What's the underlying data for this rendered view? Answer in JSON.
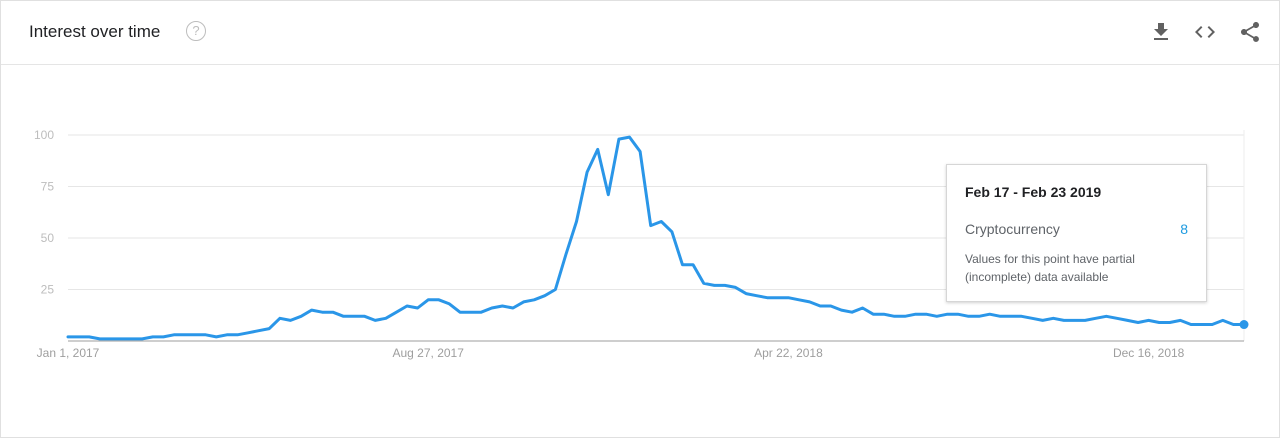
{
  "header": {
    "title": "Interest over time",
    "help_glyph": "?",
    "tools": [
      {
        "name": "download",
        "icon": "download-icon"
      },
      {
        "name": "embed",
        "icon": "code-icon"
      },
      {
        "name": "share",
        "icon": "share-icon"
      }
    ]
  },
  "tooltip": {
    "date": "Feb 17 - Feb 23 2019",
    "series": "Cryptocurrency",
    "value": "8",
    "note": "Values for this point have partial (incomplete) data available"
  },
  "colors": {
    "line": "#2a96e8",
    "grid": "#e6e6e6",
    "axis": "#9e9e9e",
    "tick_label": "#bdbdbd",
    "value": "#1e9be0"
  },
  "chart_data": {
    "type": "line",
    "title": "",
    "xlabel": "",
    "ylabel": "",
    "ylim": [
      0,
      100
    ],
    "yticks": [
      25,
      50,
      75,
      100
    ],
    "grid": true,
    "x_tick_labels": [
      {
        "label": "Jan 1, 2017",
        "index": 0
      },
      {
        "label": "Aug 27, 2017",
        "index": 34
      },
      {
        "label": "Apr 22, 2018",
        "index": 68
      },
      {
        "label": "Dec 16, 2018",
        "index": 102
      }
    ],
    "x_start": "Jan 1, 2017",
    "x_step": "1 week",
    "series": [
      {
        "name": "Cryptocurrency",
        "values": [
          2,
          2,
          2,
          1,
          1,
          1,
          1,
          1,
          2,
          2,
          3,
          3,
          3,
          3,
          2,
          3,
          3,
          4,
          5,
          6,
          11,
          10,
          12,
          15,
          14,
          14,
          12,
          12,
          12,
          10,
          11,
          14,
          17,
          16,
          20,
          20,
          18,
          14,
          14,
          14,
          16,
          17,
          16,
          19,
          20,
          22,
          25,
          42,
          58,
          82,
          93,
          71,
          98,
          99,
          92,
          56,
          58,
          53,
          37,
          37,
          28,
          27,
          27,
          26,
          23,
          22,
          21,
          21,
          21,
          20,
          19,
          17,
          17,
          15,
          14,
          16,
          13,
          13,
          12,
          12,
          13,
          13,
          12,
          13,
          13,
          12,
          12,
          13,
          12,
          12,
          12,
          11,
          10,
          11,
          10,
          10,
          10,
          11,
          12,
          11,
          10,
          9,
          10,
          9,
          9,
          10,
          8,
          8,
          8,
          10,
          8,
          8
        ]
      }
    ],
    "highlight_index": 111
  }
}
